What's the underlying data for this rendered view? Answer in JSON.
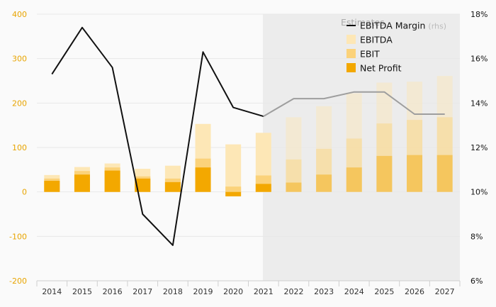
{
  "chart_data": {
    "type": "bar",
    "title": "",
    "xlabel": "",
    "ylabel": "",
    "categories": [
      "2014",
      "2015",
      "2016",
      "2017",
      "2018",
      "2019",
      "2020",
      "2021",
      "2022",
      "2023",
      "2024",
      "2025",
      "2026",
      "2027"
    ],
    "estimate_start": "2021",
    "estimates_label": "Estimates",
    "stacked_overlay": true,
    "series": [
      {
        "name": "EBITDA",
        "type": "bar",
        "axis": "left",
        "color": "#fde7b6",
        "values": [
          38,
          56,
          64,
          52,
          59,
          153,
          107,
          133,
          168,
          193,
          222,
          246,
          248,
          261
        ]
      },
      {
        "name": "EBIT",
        "type": "bar",
        "axis": "left",
        "color": "#fbd27a",
        "values": [
          30,
          47,
          55,
          35,
          30,
          75,
          12,
          37,
          73,
          97,
          120,
          154,
          162,
          168
        ]
      },
      {
        "name": "Net Profit",
        "type": "bar",
        "axis": "left",
        "color": "#f3a800",
        "values": [
          25,
          39,
          48,
          30,
          22,
          55,
          -10,
          18,
          21,
          39,
          55,
          81,
          83,
          83
        ]
      },
      {
        "name": "EBITDA Margin",
        "type": "line",
        "axis": "right",
        "color": "#111111",
        "estimate_color": "#9e9e9e",
        "values": [
          15.3,
          17.4,
          15.6,
          9.0,
          7.6,
          16.3,
          13.8,
          13.4,
          14.2,
          14.2,
          14.5,
          14.5,
          13.5,
          13.5
        ]
      }
    ],
    "legend": {
      "position": "top-right",
      "rhs_note": "(rhs)"
    },
    "y_left": {
      "ylim": [
        -200,
        400
      ],
      "ticks": [
        "-200",
        "-100",
        "0",
        "100",
        "200",
        "300",
        "400"
      ]
    },
    "y_right": {
      "ylim": [
        6,
        18
      ],
      "ticks": [
        "6%",
        "8%",
        "10%",
        "12%",
        "14%",
        "16%",
        "18%"
      ]
    },
    "colors": {
      "left_axis": "#e8a400",
      "right_axis": "#111111",
      "grid": "#e8e8e8",
      "estimate_bg": "#ececec"
    }
  }
}
